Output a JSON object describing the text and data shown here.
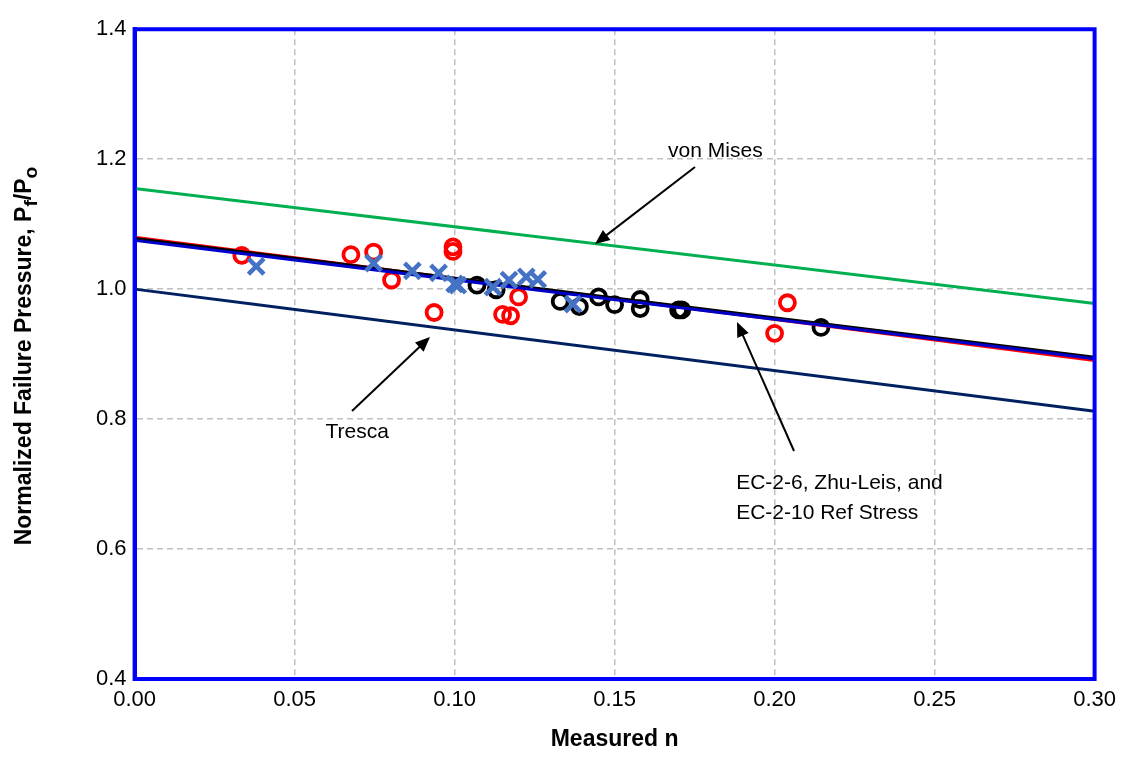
{
  "chart_data": {
    "type": "scatter",
    "xlabel": "Measured n",
    "ylabel": "Normalized Failure Pressure, P$_{f}$/P$_{o}$",
    "xlim": [
      0,
      0.3
    ],
    "xticks": [
      {
        "value": 0,
        "label": "0.00"
      },
      {
        "value": 0.05,
        "label": "0.05"
      },
      {
        "value": 0.1,
        "label": "0.10"
      },
      {
        "value": 0.15,
        "label": "0.15"
      },
      {
        "value": 0.2,
        "label": "0.20"
      },
      {
        "value": 0.25,
        "label": "0.25"
      },
      {
        "value": 0.3,
        "label": "0.30"
      }
    ],
    "ylim": [
      0.4,
      1.4
    ],
    "yticks": [
      {
        "value": 0.4,
        "label": "0.4"
      },
      {
        "value": 0.6,
        "label": "0.6"
      },
      {
        "value": 0.8,
        "label": "0.8"
      },
      {
        "value": 1,
        "label": "1.0"
      },
      {
        "value": 1.2,
        "label": "1.2"
      },
      {
        "value": 1.4,
        "label": "1.4"
      }
    ],
    "grid": true,
    "legend": false,
    "series": [
      {
        "type": "line",
        "color": "#00b050",
        "marker": "none",
        "x": [
          0,
          0.3
        ],
        "values": [
          1.155,
          0.978
        ]
      },
      {
        "type": "line",
        "color": "#002060",
        "marker": "none",
        "x": [
          0,
          0.3
        ],
        "values": [
          1.0,
          0.812
        ]
      },
      {
        "type": "line",
        "color": "#0000c8",
        "marker": "none",
        "x": [
          0,
          0.3
        ],
        "values": [
          1.075,
          0.893
        ]
      },
      {
        "type": "line",
        "color": "#000000",
        "marker": "none",
        "x": [
          0,
          0.3
        ],
        "values": [
          1.078,
          0.895
        ]
      },
      {
        "type": "line",
        "color": "#ff0000",
        "marker": "none",
        "x": [
          0,
          0.3
        ],
        "values": [
          1.08,
          0.89
        ]
      },
      {
        "type": "scatter",
        "color": "#ff0000",
        "marker": "circle",
        "x": [
          0.0335,
          0.0676,
          0.0747,
          0.0803,
          0.0936,
          0.0995,
          0.0995,
          0.115,
          0.1175,
          0.12,
          0.2,
          0.204
        ],
        "values": [
          1.052,
          1.053,
          1.057,
          1.014,
          0.964,
          1.065,
          1.058,
          0.961,
          0.959,
          0.988,
          0.932,
          0.979
        ]
      },
      {
        "type": "scatter",
        "color": "#4472c4",
        "marker": "cross",
        "x": [
          0.038,
          0.0747,
          0.0868,
          0.095,
          0.1,
          0.101,
          0.112,
          0.117,
          0.1224,
          0.126,
          0.137
        ],
        "values": [
          1.035,
          1.04,
          1.028,
          1.025,
          1.008,
          1.006,
          1.003,
          1.014,
          1.019,
          1.015,
          0.977
        ]
      },
      {
        "type": "scatter",
        "color": "#000000",
        "marker": "circle",
        "x": [
          0.107,
          0.113,
          0.133,
          0.139,
          0.145,
          0.15,
          0.158,
          0.158,
          0.17,
          0.171,
          0.2145
        ],
        "values": [
          1.006,
          0.999,
          0.981,
          0.973,
          0.988,
          0.976,
          0.984,
          0.97,
          0.968,
          0.968,
          0.941
        ]
      }
    ],
    "annotations": [
      {
        "text": "von Mises",
        "x": 0.144,
        "y": 1.07
      },
      "Tresca",
      "EC-2-6, Zhu-Leis, and\nEC-2-10 Ref Stress"
    ]
  }
}
